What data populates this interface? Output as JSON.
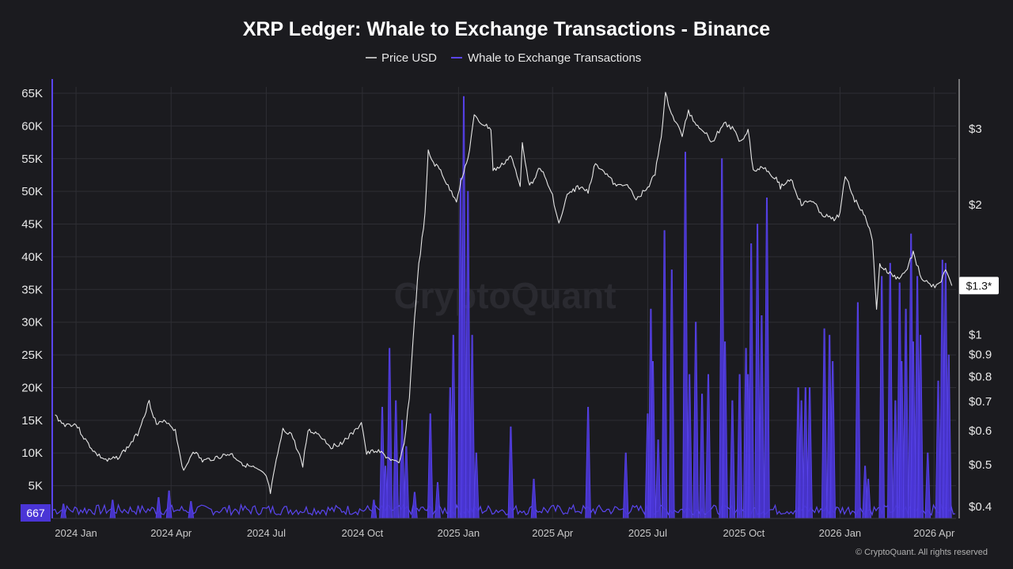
{
  "colors": {
    "background": "#1b1b1f",
    "price_line": "#e6e6e6",
    "whale_bars": "#4a35d6",
    "whale_line": "#5a45ef",
    "grid": "#2e2e34",
    "left_badge": "#4a35d6",
    "right_badge": "#ffffff"
  },
  "watermark": "CryptoQuant",
  "copyright": "© CryptoQuant. All rights reserved",
  "chart_data": {
    "type": "line",
    "title": "XRP Ledger: Whale to Exchange Transactions - Binance",
    "legend": {
      "placement": "top-center",
      "entries": [
        {
          "label": "Price USD",
          "color": "#e6e6e6"
        },
        {
          "label": "Whale to Exchange Transactions",
          "color": "#5a45ef"
        }
      ]
    },
    "grid": true,
    "x_axis": {
      "type": "date",
      "range": [
        "2023-12-10",
        "2026-04-22"
      ],
      "ticks": [
        {
          "date": "2024-01-01",
          "label": "2024 Jan"
        },
        {
          "date": "2024-04-01",
          "label": "2024 Apr"
        },
        {
          "date": "2024-07-01",
          "label": "2024 Jul"
        },
        {
          "date": "2024-10-01",
          "label": "2024 Oct"
        },
        {
          "date": "2025-01-01",
          "label": "2025 Jan"
        },
        {
          "date": "2025-04-01",
          "label": "2025 Apr"
        },
        {
          "date": "2025-07-01",
          "label": "2025 Jul"
        },
        {
          "date": "2025-10-01",
          "label": "2025 Oct"
        },
        {
          "date": "2026-01-01",
          "label": "2026 Jan"
        },
        {
          "date": "2026-04-01",
          "label": "2026 Apr"
        }
      ]
    },
    "y_left": {
      "series": "Whale to Exchange Transactions",
      "range": [
        0,
        65000
      ],
      "ticks": [
        {
          "v": 5000,
          "label": "5K"
        },
        {
          "v": 10000,
          "label": "10K"
        },
        {
          "v": 15000,
          "label": "15K"
        },
        {
          "v": 20000,
          "label": "20K"
        },
        {
          "v": 25000,
          "label": "25K"
        },
        {
          "v": 30000,
          "label": "30K"
        },
        {
          "v": 35000,
          "label": "35K"
        },
        {
          "v": 40000,
          "label": "40K"
        },
        {
          "v": 45000,
          "label": "45K"
        },
        {
          "v": 50000,
          "label": "50K"
        },
        {
          "v": 55000,
          "label": "55K"
        },
        {
          "v": 60000,
          "label": "60K"
        },
        {
          "v": 65000,
          "label": "65K"
        }
      ],
      "current_value_label": "667"
    },
    "y_right": {
      "series": "Price USD",
      "scale": "log",
      "range": [
        0.38,
        3.6
      ],
      "ticks": [
        {
          "v": 0.4,
          "label": "$0.4"
        },
        {
          "v": 0.5,
          "label": "$0.5"
        },
        {
          "v": 0.6,
          "label": "$0.6"
        },
        {
          "v": 0.7,
          "label": "$0.7"
        },
        {
          "v": 0.8,
          "label": "$0.8"
        },
        {
          "v": 0.9,
          "label": "$0.9"
        },
        {
          "v": 1,
          "label": "$1"
        },
        {
          "v": 2,
          "label": "$2"
        },
        {
          "v": 3,
          "label": "$3"
        }
      ],
      "current_value": 1.3,
      "current_value_label": "$1.3*"
    },
    "series": [
      {
        "name": "Price USD",
        "axis": "right",
        "points": [
          [
            "2023-12-12",
            0.65
          ],
          [
            "2023-12-20",
            0.62
          ],
          [
            "2024-01-01",
            0.62
          ],
          [
            "2024-01-10",
            0.57
          ],
          [
            "2024-01-20",
            0.53
          ],
          [
            "2024-01-31",
            0.51
          ],
          [
            "2024-02-10",
            0.52
          ],
          [
            "2024-02-20",
            0.55
          ],
          [
            "2024-02-29",
            0.59
          ],
          [
            "2024-03-05",
            0.64
          ],
          [
            "2024-03-11",
            0.7
          ],
          [
            "2024-03-18",
            0.62
          ],
          [
            "2024-03-28",
            0.63
          ],
          [
            "2024-04-05",
            0.6
          ],
          [
            "2024-04-13",
            0.48
          ],
          [
            "2024-04-22",
            0.54
          ],
          [
            "2024-05-01",
            0.51
          ],
          [
            "2024-05-15",
            0.52
          ],
          [
            "2024-05-28",
            0.53
          ],
          [
            "2024-06-10",
            0.5
          ],
          [
            "2024-06-20",
            0.49
          ],
          [
            "2024-07-01",
            0.47
          ],
          [
            "2024-07-05",
            0.43
          ],
          [
            "2024-07-12",
            0.53
          ],
          [
            "2024-07-17",
            0.6
          ],
          [
            "2024-07-25",
            0.59
          ],
          [
            "2024-08-05",
            0.5
          ],
          [
            "2024-08-10",
            0.6
          ],
          [
            "2024-08-20",
            0.59
          ],
          [
            "2024-09-01",
            0.55
          ],
          [
            "2024-09-10",
            0.56
          ],
          [
            "2024-09-25",
            0.6
          ],
          [
            "2024-09-30",
            0.63
          ],
          [
            "2024-10-05",
            0.53
          ],
          [
            "2024-10-15",
            0.54
          ],
          [
            "2024-10-25",
            0.52
          ],
          [
            "2024-11-05",
            0.5
          ],
          [
            "2024-11-10",
            0.56
          ],
          [
            "2024-11-15",
            0.72
          ],
          [
            "2024-11-20",
            1.1
          ],
          [
            "2024-11-24",
            1.45
          ],
          [
            "2024-11-30",
            1.9
          ],
          [
            "2024-12-03",
            2.65
          ],
          [
            "2024-12-08",
            2.5
          ],
          [
            "2024-12-15",
            2.4
          ],
          [
            "2024-12-22",
            2.2
          ],
          [
            "2024-12-30",
            2.05
          ],
          [
            "2025-01-06",
            2.4
          ],
          [
            "2025-01-10",
            2.55
          ],
          [
            "2025-01-16",
            3.2
          ],
          [
            "2025-01-22",
            3.1
          ],
          [
            "2025-02-01",
            3.0
          ],
          [
            "2025-02-03",
            2.4
          ],
          [
            "2025-02-10",
            2.45
          ],
          [
            "2025-02-20",
            2.6
          ],
          [
            "2025-03-01",
            2.2
          ],
          [
            "2025-03-03",
            2.8
          ],
          [
            "2025-03-10",
            2.2
          ],
          [
            "2025-03-20",
            2.45
          ],
          [
            "2025-04-01",
            2.1
          ],
          [
            "2025-04-07",
            1.8
          ],
          [
            "2025-04-15",
            2.1
          ],
          [
            "2025-04-25",
            2.2
          ],
          [
            "2025-05-05",
            2.15
          ],
          [
            "2025-05-12",
            2.5
          ],
          [
            "2025-05-20",
            2.4
          ],
          [
            "2025-06-01",
            2.2
          ],
          [
            "2025-06-10",
            2.25
          ],
          [
            "2025-06-20",
            2.05
          ],
          [
            "2025-07-01",
            2.2
          ],
          [
            "2025-07-08",
            2.35
          ],
          [
            "2025-07-14",
            2.9
          ],
          [
            "2025-07-18",
            3.6
          ],
          [
            "2025-07-25",
            3.2
          ],
          [
            "2025-08-03",
            2.9
          ],
          [
            "2025-08-09",
            3.3
          ],
          [
            "2025-08-15",
            3.1
          ],
          [
            "2025-08-22",
            3.0
          ],
          [
            "2025-09-01",
            2.8
          ],
          [
            "2025-09-12",
            3.1
          ],
          [
            "2025-09-20",
            3.0
          ],
          [
            "2025-09-28",
            2.8
          ],
          [
            "2025-10-05",
            3.0
          ],
          [
            "2025-10-10",
            2.4
          ],
          [
            "2025-10-20",
            2.45
          ],
          [
            "2025-11-01",
            2.3
          ],
          [
            "2025-11-05",
            2.2
          ],
          [
            "2025-11-15",
            2.3
          ],
          [
            "2025-11-25",
            2.0
          ],
          [
            "2025-12-05",
            2.05
          ],
          [
            "2025-12-15",
            1.9
          ],
          [
            "2025-12-25",
            1.85
          ],
          [
            "2026-01-01",
            1.9
          ],
          [
            "2026-01-06",
            2.35
          ],
          [
            "2026-01-15",
            2.05
          ],
          [
            "2026-01-25",
            1.9
          ],
          [
            "2026-02-01",
            1.65
          ],
          [
            "2026-02-05",
            1.15
          ],
          [
            "2026-02-08",
            1.45
          ],
          [
            "2026-02-15",
            1.4
          ],
          [
            "2026-02-25",
            1.35
          ],
          [
            "2026-03-05",
            1.4
          ],
          [
            "2026-03-12",
            1.55
          ],
          [
            "2026-03-20",
            1.35
          ],
          [
            "2026-03-28",
            1.3
          ],
          [
            "2026-04-05",
            1.3
          ],
          [
            "2026-04-12",
            1.4
          ],
          [
            "2026-04-18",
            1.3
          ]
        ]
      },
      {
        "name": "Whale to Exchange Transactions",
        "axis": "left",
        "baseline": 1300,
        "spikes": [
          [
            "2023-12-20",
            2200
          ],
          [
            "2024-02-05",
            2800
          ],
          [
            "2024-03-20",
            3200
          ],
          [
            "2024-03-30",
            4200
          ],
          [
            "2024-04-20",
            2600
          ],
          [
            "2024-10-12",
            2800
          ],
          [
            "2024-10-20",
            17000
          ],
          [
            "2024-10-23",
            8000
          ],
          [
            "2024-10-27",
            26000
          ],
          [
            "2024-11-02",
            18000
          ],
          [
            "2024-11-08",
            15000
          ],
          [
            "2024-11-12",
            11000
          ],
          [
            "2024-11-20",
            4000
          ],
          [
            "2024-12-05",
            16000
          ],
          [
            "2024-12-12",
            5500
          ],
          [
            "2024-12-24",
            20000
          ],
          [
            "2024-12-27",
            28000
          ],
          [
            "2025-01-03",
            52000
          ],
          [
            "2025-01-06",
            64500
          ],
          [
            "2025-01-10",
            50000
          ],
          [
            "2025-01-14",
            28000
          ],
          [
            "2025-01-18",
            10000
          ],
          [
            "2025-02-20",
            14000
          ],
          [
            "2025-03-14",
            6000
          ],
          [
            "2025-05-05",
            17000
          ],
          [
            "2025-06-10",
            10000
          ],
          [
            "2025-07-01",
            16000
          ],
          [
            "2025-07-04",
            32000
          ],
          [
            "2025-07-06",
            24000
          ],
          [
            "2025-07-11",
            12000
          ],
          [
            "2025-07-17",
            44000
          ],
          [
            "2025-07-24",
            38000
          ],
          [
            "2025-08-06",
            56000
          ],
          [
            "2025-08-10",
            22000
          ],
          [
            "2025-08-16",
            30000
          ],
          [
            "2025-08-22",
            19000
          ],
          [
            "2025-08-28",
            22000
          ],
          [
            "2025-09-10",
            55000
          ],
          [
            "2025-09-13",
            27000
          ],
          [
            "2025-09-20",
            18000
          ],
          [
            "2025-09-27",
            22000
          ],
          [
            "2025-10-03",
            26000
          ],
          [
            "2025-10-05",
            22000
          ],
          [
            "2025-10-08",
            42000
          ],
          [
            "2025-10-14",
            45000
          ],
          [
            "2025-10-18",
            31000
          ],
          [
            "2025-10-23",
            49000
          ],
          [
            "2025-11-22",
            20000
          ],
          [
            "2025-11-25",
            18000
          ],
          [
            "2025-11-29",
            20000
          ],
          [
            "2025-12-03",
            20000
          ],
          [
            "2025-12-17",
            29000
          ],
          [
            "2025-12-22",
            28000
          ],
          [
            "2025-12-25",
            24000
          ],
          [
            "2026-01-18",
            33000
          ],
          [
            "2026-01-25",
            8000
          ],
          [
            "2026-01-28",
            6000
          ],
          [
            "2026-02-10",
            37000
          ],
          [
            "2026-02-18",
            39000
          ],
          [
            "2026-02-23",
            18000
          ],
          [
            "2026-02-27",
            36000
          ],
          [
            "2026-03-01",
            24000
          ],
          [
            "2026-03-05",
            32000
          ],
          [
            "2026-03-10",
            43500
          ],
          [
            "2026-03-12",
            27000
          ],
          [
            "2026-03-16",
            37000
          ],
          [
            "2026-03-19",
            28000
          ],
          [
            "2026-03-26",
            10000
          ],
          [
            "2026-04-05",
            21000
          ],
          [
            "2026-04-09",
            39500
          ],
          [
            "2026-04-12",
            39000
          ],
          [
            "2026-04-15",
            25000
          ]
        ]
      }
    ]
  }
}
